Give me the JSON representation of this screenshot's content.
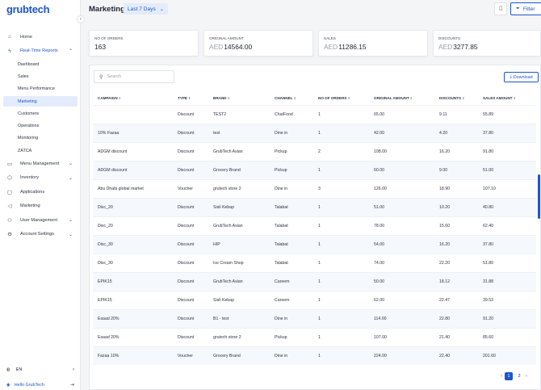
{
  "brand": {
    "name": "grubtech"
  },
  "nav": {
    "items": [
      {
        "label": "Home",
        "icon": "home-icon",
        "glyph": "⌂"
      },
      {
        "label": "Real-Time Reports",
        "icon": "pulse-icon",
        "glyph": "ϟ"
      }
    ],
    "sub_items": [
      {
        "label": "Dashboard"
      },
      {
        "label": "Sales"
      },
      {
        "label": "Menu Performance"
      },
      {
        "label": "Marketing"
      },
      {
        "label": "Customers"
      },
      {
        "label": "Operations"
      },
      {
        "label": "Monitoring"
      },
      {
        "label": "ZATCA"
      }
    ],
    "lower_items": [
      {
        "label": "Menu Management",
        "glyph": "▭"
      },
      {
        "label": "Inventory",
        "glyph": "⬡"
      },
      {
        "label": "Applications",
        "glyph": "▢"
      },
      {
        "label": "Marketing",
        "glyph": "◁"
      },
      {
        "label": "User Management",
        "glyph": "⚇"
      },
      {
        "label": "Account Settings",
        "glyph": "⚙"
      }
    ]
  },
  "footer": {
    "language": "EN",
    "user": "Hello GrubTech"
  },
  "header": {
    "title": "Marketing",
    "period": "Last 7 Days",
    "filter_label": "Filter"
  },
  "stats": [
    {
      "label": "NO OF ORDERS",
      "currency": "",
      "value": "163"
    },
    {
      "label": "ORIGINAL AMOUNT",
      "currency": "AED",
      "value": "14564.00"
    },
    {
      "label": "SALES",
      "currency": "AED",
      "value": "11286.15"
    },
    {
      "label": "DISCOUNTS",
      "currency": "AED",
      "value": "3277.85"
    }
  ],
  "table": {
    "search_placeholder": "Search",
    "download_label": "Download",
    "columns": [
      "CAMPAIGN",
      "TYPE",
      "BRAND",
      "CHANNEL",
      "NO OF ORDERS",
      "ORIGINAL AMOUNT",
      "DISCOUNTS",
      "SALES AMOUNT"
    ],
    "rows": [
      [
        "",
        "Discount",
        "TEST2",
        "ChatFood",
        "1",
        "65.00",
        "9.11",
        "55.89"
      ],
      [
        "10% Fazaa",
        "Discount",
        "test",
        "Dine in",
        "1",
        "42.00",
        "4.20",
        "37.80"
      ],
      [
        "ADGM discount",
        "Discount",
        "GrubTech Asian",
        "Pickup",
        "2",
        "108.00",
        "16.20",
        "91.80"
      ],
      [
        "ADGM discount",
        "Discount",
        "Grocery Brand",
        "Pickup",
        "1",
        "60.00",
        "9.00",
        "51.00"
      ],
      [
        "Abu Dhabi global market",
        "Voucher",
        "grutech store 2",
        "Dine in",
        "3",
        "126.00",
        "18.90",
        "107.10"
      ],
      [
        "Disc_20",
        "Discount",
        "Sisli Kebap",
        "Talabat",
        "1",
        "51.00",
        "10.20",
        "40.80"
      ],
      [
        "Disc_20",
        "Discount",
        "GrubTech Asian",
        "Talabat",
        "1",
        "78.00",
        "15.60",
        "62.40"
      ],
      [
        "Disc_30",
        "Discount",
        "HIP",
        "Talabat",
        "1",
        "54.00",
        "16.20",
        "37.80"
      ],
      [
        "Disc_30",
        "Discount",
        "Ice Cream Shop",
        "Talabat",
        "1",
        "74.00",
        "22.20",
        "51.80"
      ],
      [
        "EPIK15",
        "Discount",
        "GrubTech Asian",
        "Careem",
        "1",
        "50.00",
        "18.12",
        "31.88"
      ],
      [
        "EPIK15",
        "Discount",
        "Sisli Kebap",
        "Careem",
        "1",
        "62.00",
        "22.47",
        "39.53"
      ],
      [
        "Esaad 20%",
        "Discount",
        "B1 - test",
        "Dine in",
        "1",
        "114.00",
        "22.80",
        "91.20"
      ],
      [
        "Esaad 20%",
        "Discount",
        "grutech store 2",
        "Pickup",
        "1",
        "107.00",
        "21.40",
        "85.60"
      ],
      [
        "Fazaa 10%",
        "Voucher",
        "Grocery Brand",
        "Dine in",
        "1",
        "224.00",
        "22.40",
        "201.60"
      ]
    ]
  },
  "pagination": {
    "pages": [
      "1",
      "2"
    ],
    "current": "1"
  },
  "colors": {
    "accent": "#1e56c8",
    "selected_bg": "#e4ecfb"
  }
}
